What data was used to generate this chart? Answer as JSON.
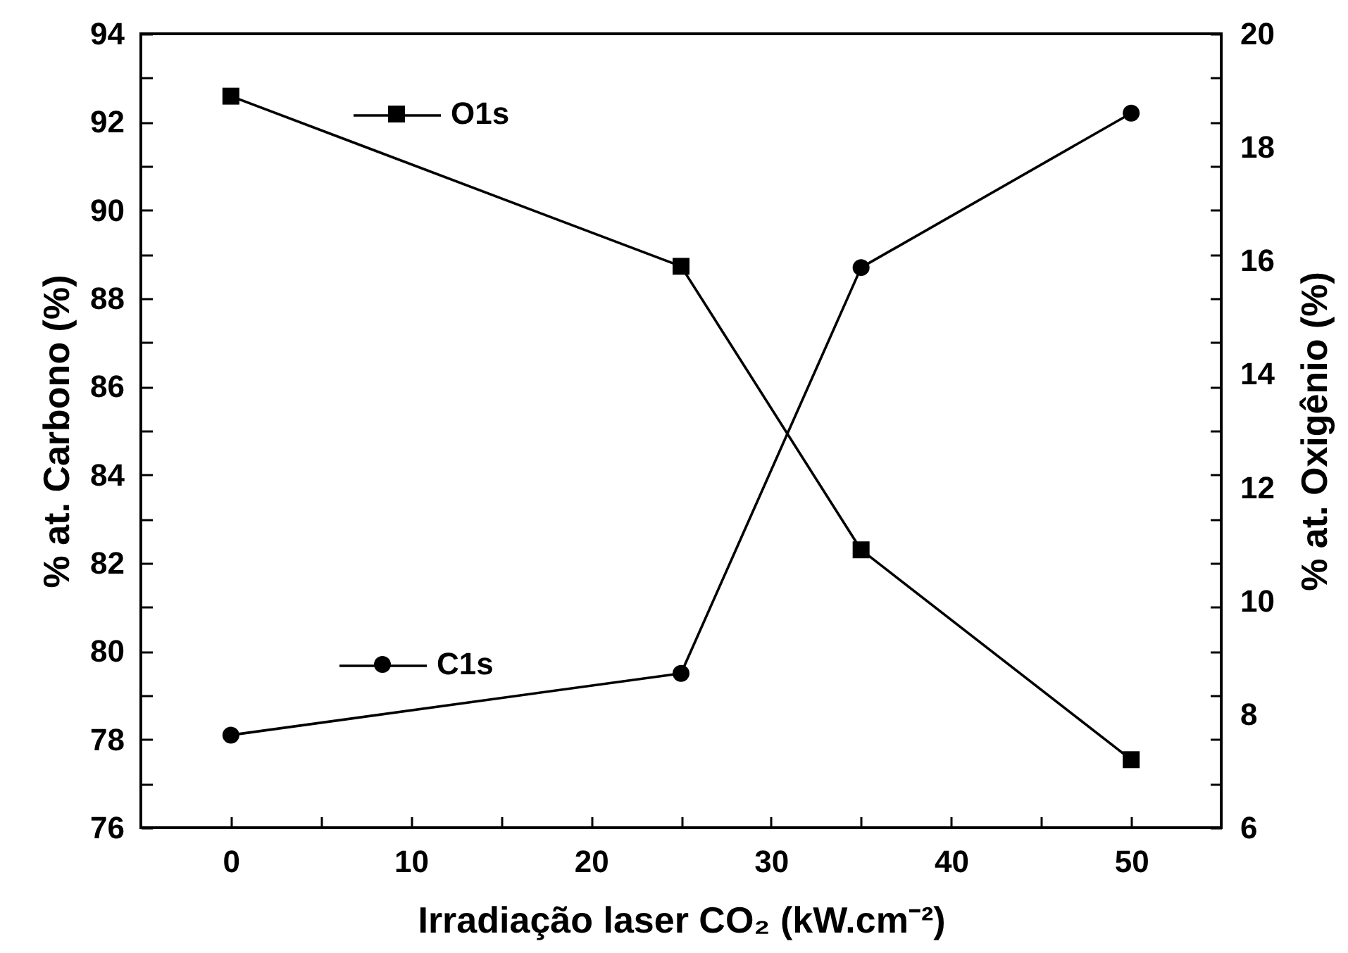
{
  "chart_data": {
    "type": "line",
    "xlabel": "Irradiação laser CO₂ (kW.cm⁻²)",
    "ylabel": "% at. Carbono (%)",
    "y2label": "% at. Oxigênio (%)",
    "x": [
      0,
      25,
      35,
      50
    ],
    "series": [
      {
        "name": "O1s",
        "color": "#000000",
        "axis": "y2",
        "marker": "square",
        "values": [
          18.9,
          15.9,
          10.9,
          7.2
        ]
      },
      {
        "name": "C1s",
        "color": "#000000",
        "marker": "circle",
        "values": [
          78.1,
          79.5,
          88.7,
          92.2
        ]
      }
    ],
    "xlim": [
      -5,
      55
    ],
    "xticks": [
      0,
      {
        "value": 5,
        "label": null
      },
      10,
      {
        "value": 15,
        "label": null
      },
      20,
      {
        "value": 25,
        "label": null
      },
      30,
      {
        "value": 35,
        "label": null
      },
      40,
      {
        "value": 45,
        "label": null
      },
      50
    ],
    "ylim": [
      76,
      94
    ],
    "yticks": [
      76,
      {
        "value": 77,
        "label": null
      },
      78,
      {
        "value": 79,
        "label": null
      },
      80,
      {
        "value": 81,
        "label": null
      },
      82,
      {
        "value": 83,
        "label": null
      },
      84,
      {
        "value": 85,
        "label": null
      },
      86,
      {
        "value": 87,
        "label": null
      },
      88,
      {
        "value": 89,
        "label": null
      },
      90,
      {
        "value": 91,
        "label": null
      },
      92,
      {
        "value": 93,
        "label": null
      },
      94
    ],
    "y2lim": [
      6,
      20
    ],
    "y2ticks": [
      6,
      8,
      10,
      12,
      14,
      16,
      18,
      20
    ],
    "legend": "left"
  }
}
